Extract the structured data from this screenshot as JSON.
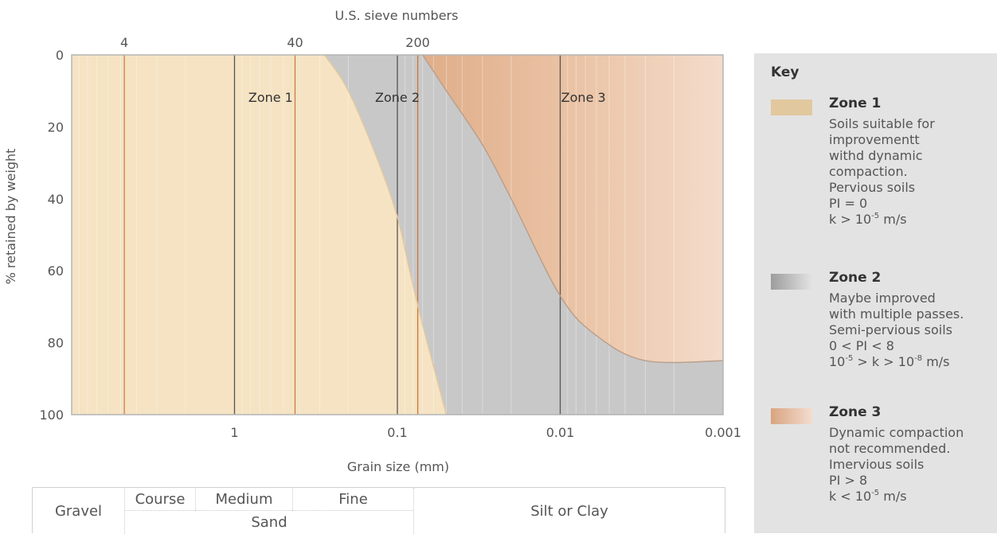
{
  "chart_data": {
    "type": "area",
    "title": "",
    "top_axis_title": "U.S. sieve numbers",
    "xlabel": "Grain size (mm)",
    "ylabel": "% retained by weight",
    "x_scale": "log",
    "x_direction": "decreasing",
    "xlim": [
      10,
      0.001
    ],
    "ylim": [
      0,
      100
    ],
    "y_inverted": true,
    "x_ticks": [
      1,
      0.1,
      0.01,
      0.001
    ],
    "x_tick_labels": [
      "1",
      "0.1",
      "0.01",
      "0.001"
    ],
    "y_ticks": [
      0,
      20,
      40,
      60,
      80,
      100
    ],
    "y_tick_labels": [
      "0",
      "20",
      "40",
      "60",
      "80",
      "100"
    ],
    "sieve_sizes": [
      {
        "label": "4",
        "mm": 4.75
      },
      {
        "label": "40",
        "mm": 0.425
      },
      {
        "label": "200",
        "mm": 0.075
      }
    ],
    "extra_sieve_lines_mm": [
      0.075
    ],
    "grid": true,
    "series": [
      {
        "name": "Zone 1",
        "color": "#f5e3c3",
        "label_at": {
          "x": 0.6,
          "y": 12
        }
      },
      {
        "name": "Zone 2",
        "color": "#c8c8c9",
        "label_at": {
          "x": 0.1,
          "y": 12
        }
      },
      {
        "name": "Zone 3",
        "color": "#e5b594",
        "label_at": {
          "x": 0.0072,
          "y": 12
        }
      }
    ],
    "boundaries": [
      {
        "between": "Zone 1 / Zone 2",
        "points": [
          [
            0.28,
            0
          ],
          [
            0.2,
            10
          ],
          [
            0.13,
            30
          ],
          [
            0.1,
            45
          ],
          [
            0.084,
            60
          ],
          [
            0.07,
            75
          ],
          [
            0.05,
            100
          ]
        ]
      },
      {
        "between": "Zone 2 / Zone 3",
        "points": [
          [
            0.07,
            0
          ],
          [
            0.05,
            10
          ],
          [
            0.03,
            25
          ],
          [
            0.02,
            40
          ],
          [
            0.01,
            67
          ],
          [
            0.006,
            78
          ],
          [
            0.003,
            85
          ],
          [
            0.001,
            85
          ]
        ]
      }
    ]
  },
  "classification": {
    "gravel": "Gravel",
    "course": "Course",
    "medium": "Medium",
    "fine": "Fine",
    "sand": "Sand",
    "silt_clay": "Silt or Clay"
  },
  "key": {
    "title": "Key",
    "items": [
      {
        "name": "Zone 1",
        "color": "#e2c89e",
        "lines": [
          "Soils suitable for",
          "improvementt",
          "withd dynamic",
          "compaction.",
          "Pervious soils",
          "PI = 0"
        ],
        "k_text": "k > 10^-5 m/s"
      },
      {
        "name": "Zone 2",
        "color": "#a9a9a9",
        "lines": [
          "Maybe improved",
          "with multiple passes.",
          "Semi-pervious soils",
          "0 < PI < 8"
        ],
        "k_text": "10^-5 > k > 10^-8 m/s"
      },
      {
        "name": "Zone 3",
        "color": "#e0b79b",
        "lines": [
          "Dynamic compaction",
          "not recommended.",
          "Imervious soils",
          "PI > 8"
        ],
        "k_text": "k < 10^-5 m/s"
      }
    ]
  }
}
